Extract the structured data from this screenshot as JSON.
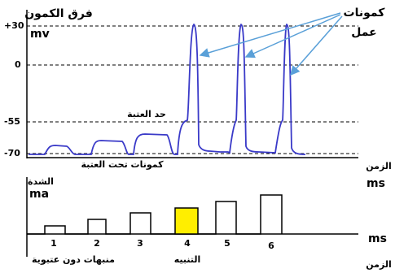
{
  "top_plot": {
    "y_axis_title": "فرق الكمون",
    "y_unit": "mv",
    "y_tick_labels": [
      "+30",
      "0",
      "-55",
      "-70"
    ],
    "x_axis_title": "الزمن",
    "x_unit": "ms",
    "annotations": {
      "action_potentials": [
        "كمونات",
        "عمل"
      ],
      "threshold": "حد العتبة",
      "subthreshold": "كمونات تحت العتبة"
    }
  },
  "bottom_plot": {
    "y_axis_title": "الشدة",
    "y_unit": "ma",
    "x_axis_title": "الزمن",
    "x_unit": "ms",
    "pulse_labels": [
      "1",
      "2",
      "3",
      "4",
      "5",
      "6"
    ],
    "stimulus": "التنبيه",
    "subthreshold_stimuli": "منبهات دون عتبوية"
  }
}
